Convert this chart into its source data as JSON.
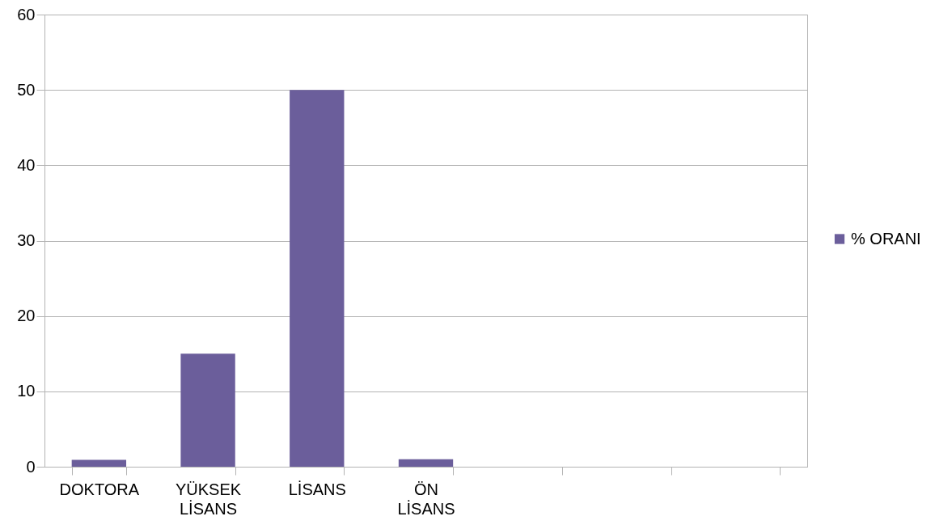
{
  "chart_data": {
    "type": "bar",
    "categories": [
      "DOKTORA",
      "YÜKSEK LİSANS",
      "LİSANS",
      "ÖN LİSANS",
      null,
      null,
      null
    ],
    "series": [
      {
        "name": "% ORANI",
        "color": "#6b5e9b",
        "values": [
          0.9,
          15,
          50,
          1,
          null,
          null,
          null
        ]
      }
    ],
    "ylim": [
      0,
      60
    ],
    "yticks": [
      0,
      10,
      20,
      30,
      40,
      50,
      60
    ],
    "grid": "y",
    "legend": "right"
  }
}
